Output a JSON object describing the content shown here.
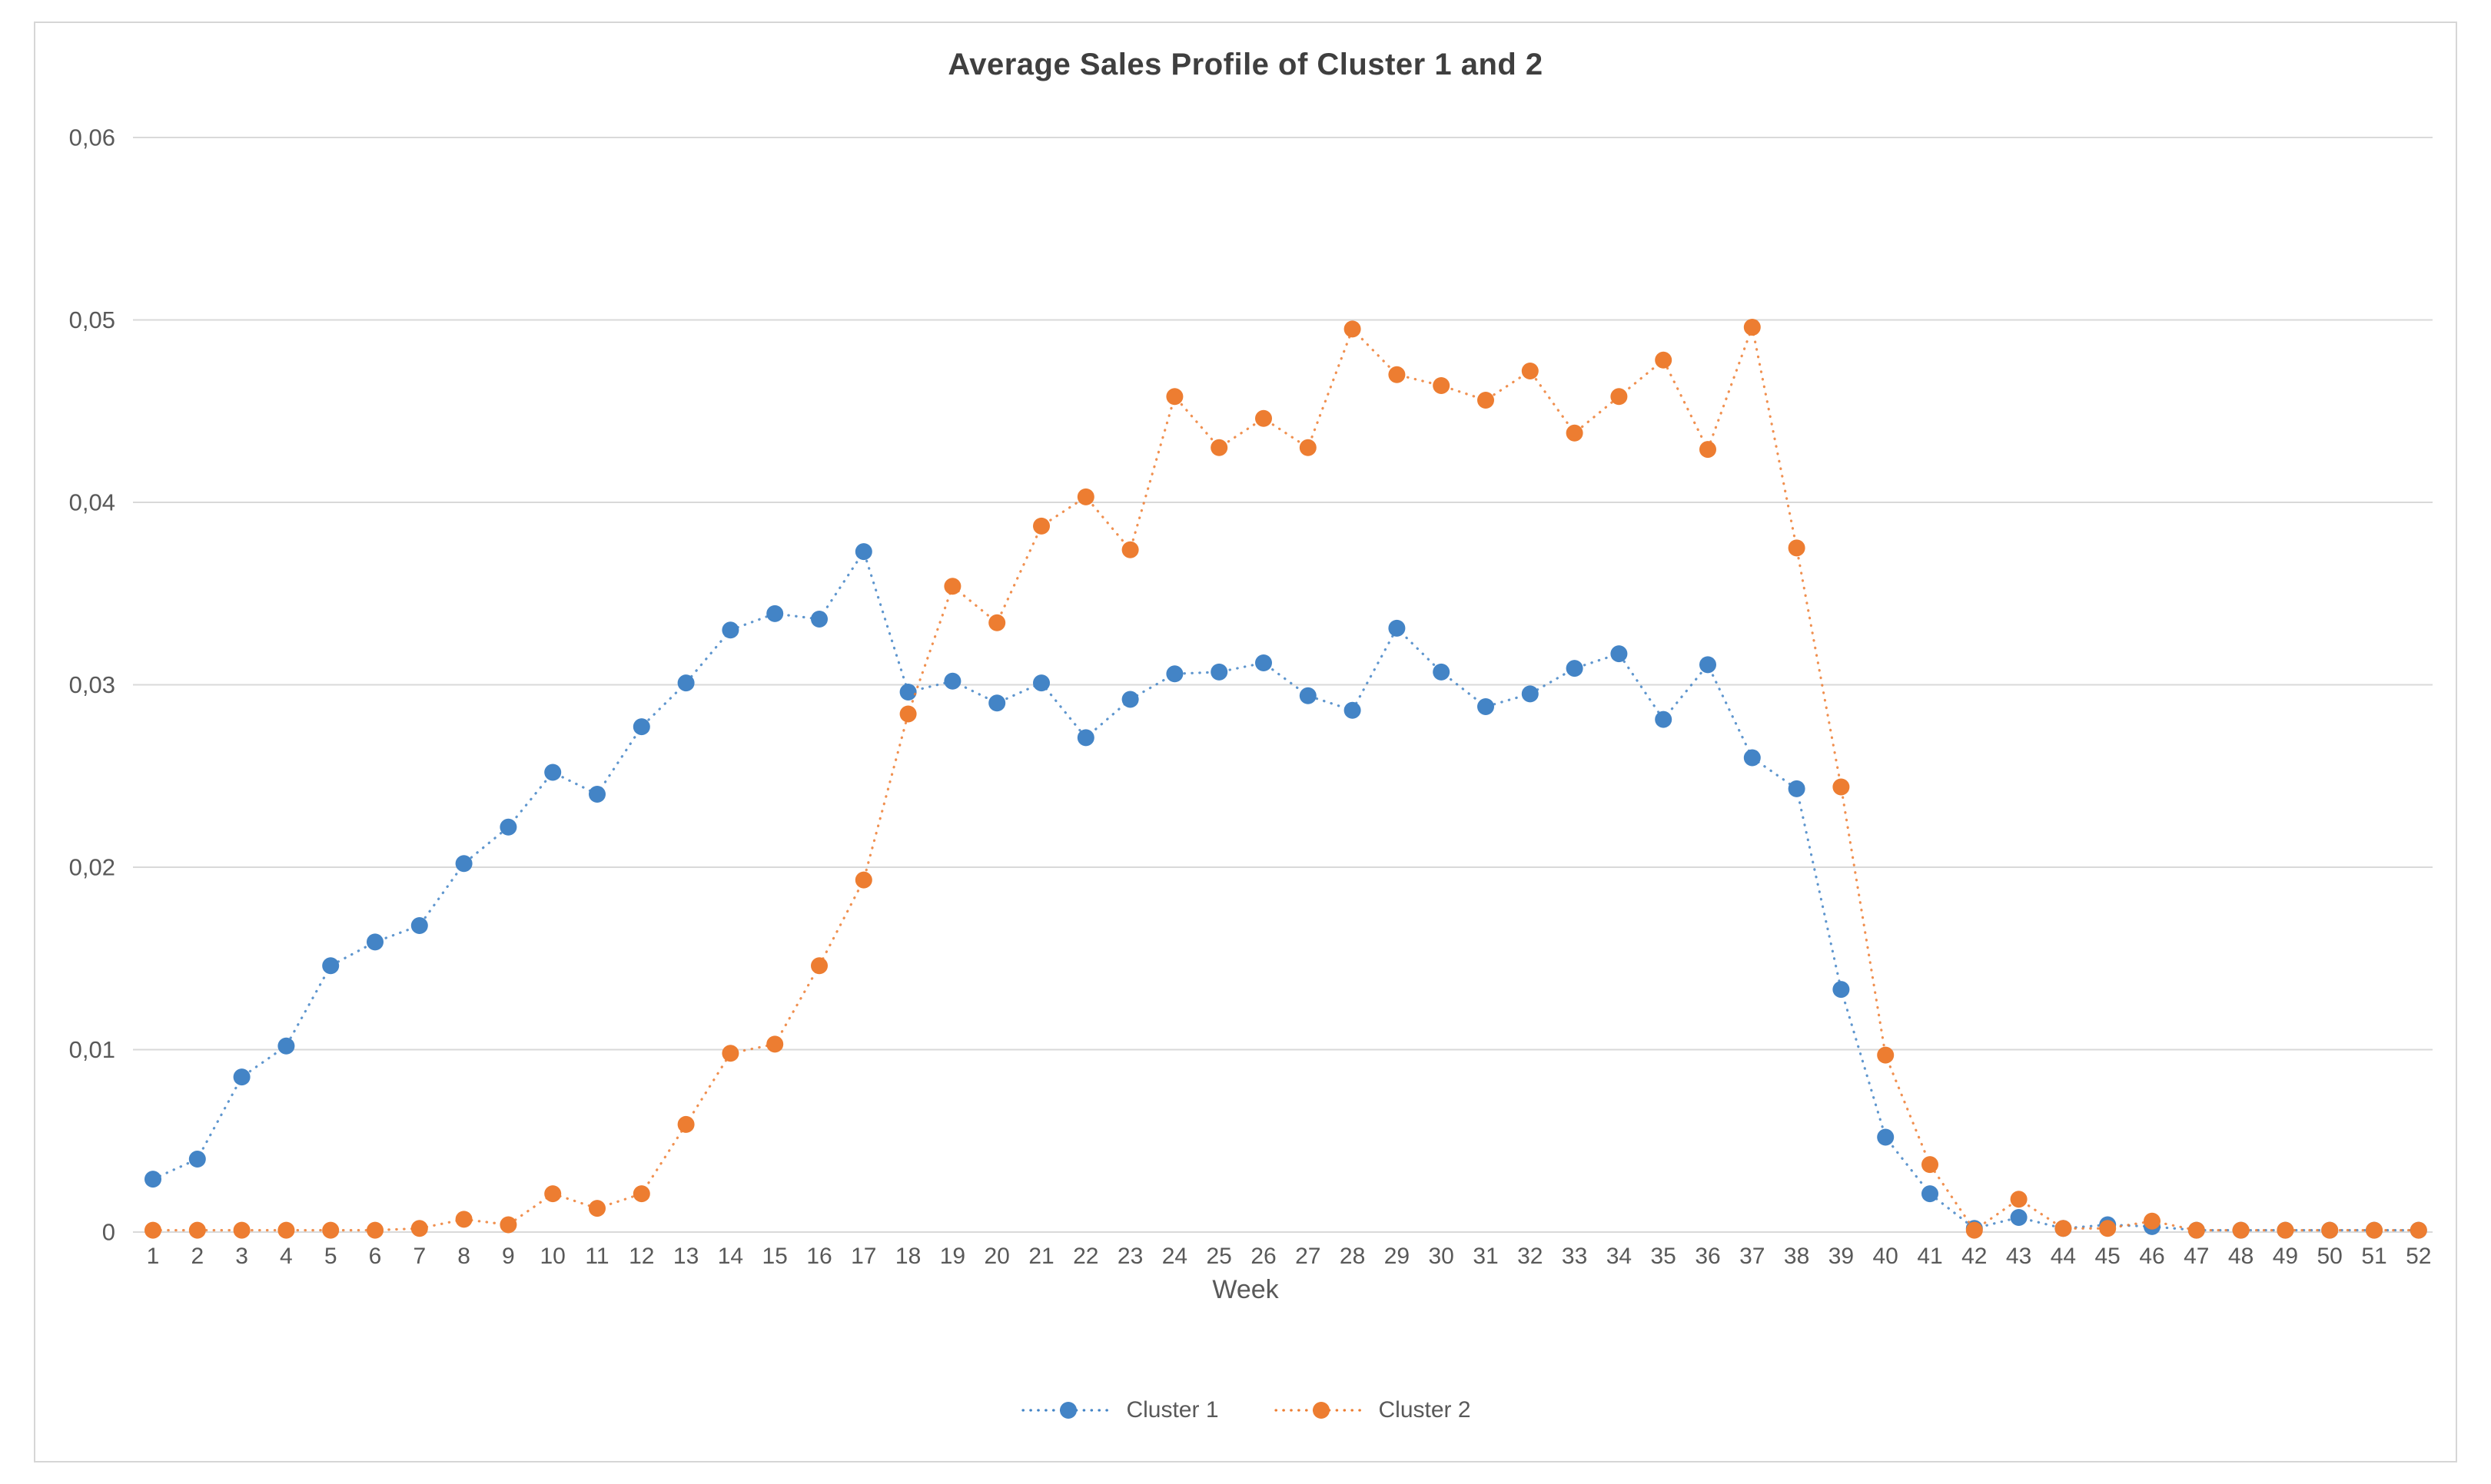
{
  "window": {
    "background_color": "#ffffff",
    "border_color": "#d6d6d6"
  },
  "chart_data": {
    "type": "line",
    "title": "Average Sales Profile of Cluster 1 and 2",
    "xlabel": "Week",
    "ylabel": "",
    "x": [
      1,
      2,
      3,
      4,
      5,
      6,
      7,
      8,
      9,
      10,
      11,
      12,
      13,
      14,
      15,
      16,
      17,
      18,
      19,
      20,
      21,
      22,
      23,
      24,
      25,
      26,
      27,
      28,
      29,
      30,
      31,
      32,
      33,
      34,
      35,
      36,
      37,
      38,
      39,
      40,
      41,
      42,
      43,
      44,
      45,
      46,
      47,
      48,
      49,
      50,
      51,
      52
    ],
    "series": [
      {
        "name": "Cluster 1",
        "color": "#4384C6",
        "marker": "circle",
        "line_style": "dotted",
        "values": [
          0.0029,
          0.004,
          0.0085,
          0.0102,
          0.0146,
          0.0159,
          0.0168,
          0.0202,
          0.0222,
          0.0252,
          0.024,
          0.0277,
          0.0301,
          0.033,
          0.0339,
          0.0336,
          0.0373,
          0.0296,
          0.0302,
          0.029,
          0.0301,
          0.0271,
          0.0292,
          0.0306,
          0.0307,
          0.0312,
          0.0294,
          0.0286,
          0.0331,
          0.0307,
          0.0288,
          0.0295,
          0.0309,
          0.0317,
          0.0281,
          0.0311,
          0.026,
          0.0243,
          0.0133,
          0.0052,
          0.0021,
          0.0002,
          0.0008,
          0.0002,
          0.0004,
          0.0003,
          0.0001,
          0.0001,
          0.0001,
          0.0001,
          0.0001,
          0.0001
        ]
      },
      {
        "name": "Cluster 2",
        "color": "#ED7D31",
        "marker": "circle",
        "line_style": "dotted",
        "values": [
          0.0001,
          0.0001,
          0.0001,
          0.0001,
          0.0001,
          0.0001,
          0.0002,
          0.0007,
          0.0004,
          0.0021,
          0.0013,
          0.0021,
          0.0059,
          0.0098,
          0.0103,
          0.0146,
          0.0193,
          0.0284,
          0.0354,
          0.0334,
          0.0387,
          0.0403,
          0.0374,
          0.0458,
          0.043,
          0.0446,
          0.043,
          0.0495,
          0.047,
          0.0464,
          0.0456,
          0.0472,
          0.0438,
          0.0458,
          0.0478,
          0.0429,
          0.0496,
          0.0375,
          0.0244,
          0.0097,
          0.0037,
          0.0001,
          0.0018,
          0.0002,
          0.0002,
          0.0006,
          0.0001,
          0.0001,
          0.0001,
          0.0001,
          0.0001,
          0.0001
        ]
      }
    ],
    "ylim": [
      0,
      0.06
    ],
    "yticks": [
      0,
      0.01,
      0.02,
      0.03,
      0.04,
      0.05,
      0.06
    ],
    "ytick_labels": [
      "0",
      "0,01",
      "0,02",
      "0,03",
      "0,04",
      "0,05",
      "0,06"
    ],
    "decimal_separator": ",",
    "grid": "horizontal",
    "gridline_color": "#d9d9d9",
    "axis_text_color": "#595959",
    "title_color": "#3f3f3f",
    "legend_position": "bottom"
  }
}
